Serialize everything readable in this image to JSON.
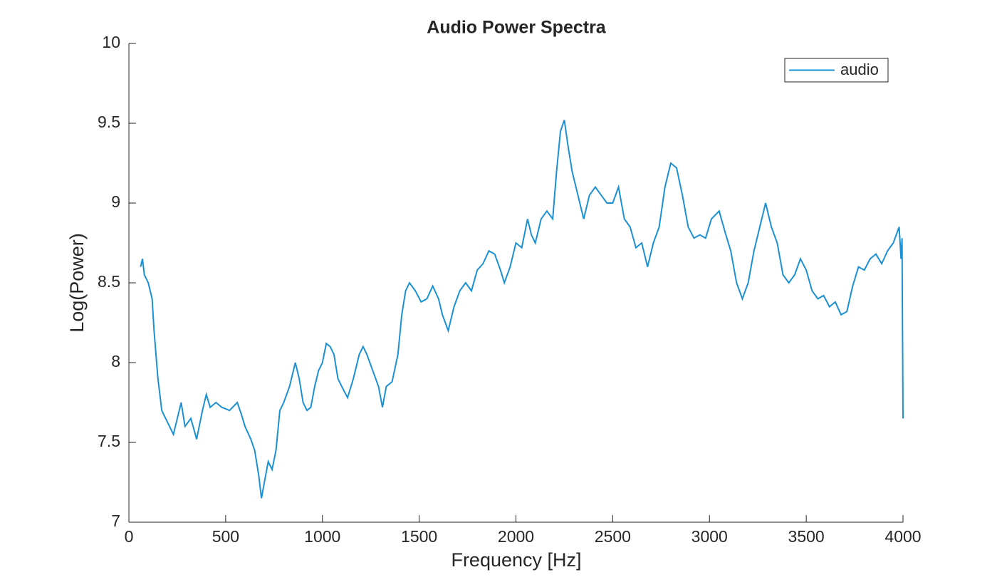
{
  "chart_data": {
    "type": "line",
    "title": "Audio Power Spectra",
    "x_label": "Frequency [Hz]",
    "y_label": "Log(Power)",
    "xlim": [
      0,
      4000
    ],
    "xticks": [
      0,
      500,
      1000,
      1500,
      2000,
      2500,
      3000,
      3500,
      4000
    ],
    "ylim": [
      7,
      10
    ],
    "yticks": [
      7,
      7.5,
      8,
      8.5,
      9,
      9.5,
      10
    ],
    "legend": "top-right",
    "x": [
      60,
      70,
      80,
      100,
      120,
      130,
      150,
      170,
      190,
      210,
      230,
      260,
      270,
      290,
      320,
      350,
      380,
      400,
      420,
      450,
      480,
      520,
      560,
      580,
      600,
      630,
      650,
      670,
      685,
      700,
      720,
      740,
      760,
      780,
      800,
      830,
      860,
      880,
      900,
      920,
      940,
      960,
      980,
      1000,
      1020,
      1040,
      1060,
      1080,
      1100,
      1130,
      1160,
      1190,
      1210,
      1230,
      1260,
      1290,
      1310,
      1330,
      1360,
      1390,
      1410,
      1430,
      1450,
      1480,
      1510,
      1540,
      1570,
      1600,
      1620,
      1650,
      1680,
      1710,
      1740,
      1770,
      1800,
      1830,
      1860,
      1890,
      1920,
      1940,
      1970,
      2000,
      2030,
      2060,
      2080,
      2100,
      2130,
      2160,
      2190,
      2210,
      2230,
      2250,
      2270,
      2290,
      2320,
      2350,
      2380,
      2410,
      2440,
      2470,
      2500,
      2530,
      2560,
      2590,
      2620,
      2650,
      2680,
      2710,
      2740,
      2770,
      2800,
      2830,
      2860,
      2890,
      2920,
      2950,
      2980,
      3010,
      3050,
      3080,
      3110,
      3140,
      3170,
      3200,
      3230,
      3260,
      3290,
      3320,
      3350,
      3380,
      3410,
      3440,
      3470,
      3500,
      3530,
      3560,
      3590,
      3620,
      3650,
      3680,
      3710,
      3740,
      3770,
      3800,
      3830,
      3860,
      3890,
      3920,
      3950,
      3980,
      3990,
      3995,
      4000
    ],
    "series": [
      {
        "name": "audio",
        "color": "#1b91d3",
        "values": [
          8.6,
          8.65,
          8.55,
          8.5,
          8.4,
          8.2,
          7.9,
          7.7,
          7.65,
          7.6,
          7.55,
          7.7,
          7.75,
          7.6,
          7.65,
          7.52,
          7.7,
          7.8,
          7.72,
          7.75,
          7.72,
          7.7,
          7.75,
          7.68,
          7.6,
          7.52,
          7.45,
          7.3,
          7.15,
          7.25,
          7.38,
          7.33,
          7.45,
          7.7,
          7.75,
          7.85,
          8.0,
          7.9,
          7.75,
          7.7,
          7.72,
          7.85,
          7.95,
          8.0,
          8.12,
          8.1,
          8.05,
          7.9,
          7.85,
          7.78,
          7.9,
          8.05,
          8.1,
          8.05,
          7.95,
          7.85,
          7.72,
          7.85,
          7.88,
          8.05,
          8.3,
          8.45,
          8.5,
          8.45,
          8.38,
          8.4,
          8.48,
          8.4,
          8.3,
          8.2,
          8.35,
          8.45,
          8.5,
          8.45,
          8.58,
          8.62,
          8.7,
          8.68,
          8.58,
          8.5,
          8.6,
          8.75,
          8.72,
          8.9,
          8.8,
          8.75,
          8.9,
          8.95,
          8.9,
          9.2,
          9.45,
          9.52,
          9.35,
          9.2,
          9.05,
          8.9,
          9.05,
          9.1,
          9.05,
          9.0,
          9.0,
          9.1,
          8.9,
          8.85,
          8.72,
          8.75,
          8.6,
          8.75,
          8.85,
          9.1,
          9.25,
          9.22,
          9.05,
          8.85,
          8.78,
          8.8,
          8.78,
          8.9,
          8.95,
          8.82,
          8.7,
          8.5,
          8.4,
          8.5,
          8.7,
          8.85,
          9.0,
          8.85,
          8.75,
          8.55,
          8.5,
          8.55,
          8.65,
          8.58,
          8.45,
          8.4,
          8.42,
          8.35,
          8.38,
          8.3,
          8.32,
          8.48,
          8.6,
          8.58,
          8.65,
          8.68,
          8.62,
          8.7,
          8.75,
          8.85,
          8.65,
          8.78,
          7.65
        ]
      }
    ]
  }
}
